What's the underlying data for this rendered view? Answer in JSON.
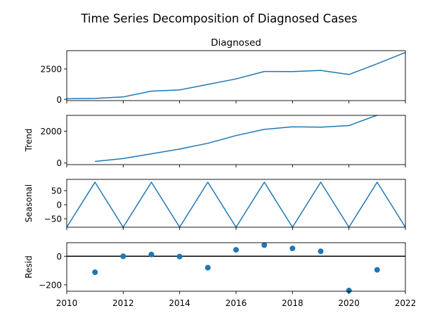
{
  "figure": {
    "suptitle": "Time Series Decomposition of Diagnosed Cases"
  },
  "colors": {
    "line": "#1f77b4",
    "marker": "#1f77b4",
    "axis": "#000000",
    "background": "#ffffff"
  },
  "chart_data": [
    {
      "type": "line",
      "title": "Diagnosed",
      "ylabel": "",
      "xlim": [
        2010,
        2022
      ],
      "ylim": [
        -100,
        4000
      ],
      "yticks": [
        0,
        2500
      ],
      "x": [
        2010,
        2011,
        2012,
        2013,
        2014,
        2015,
        2016,
        2017,
        2018,
        2019,
        2020,
        2021,
        2022
      ],
      "series": [
        {
          "values": [
            50,
            80,
            200,
            680,
            780,
            1230,
            1680,
            2290,
            2280,
            2380,
            2040,
            2920,
            3850
          ]
        }
      ]
    },
    {
      "type": "line",
      "title": "",
      "ylabel": "Trend",
      "xlim": [
        2010,
        2022
      ],
      "ylim": [
        -100,
        3000
      ],
      "yticks": [
        0,
        2000
      ],
      "x": [
        2011,
        2012,
        2013,
        2014,
        2015,
        2016,
        2017,
        2018,
        2019,
        2020,
        2021
      ],
      "series": [
        {
          "values": [
            100,
            280,
            580,
            880,
            1240,
            1730,
            2120,
            2280,
            2260,
            2360,
            3010
          ]
        }
      ]
    },
    {
      "type": "line",
      "title": "",
      "ylabel": "Seasonal",
      "xlim": [
        2010,
        2022
      ],
      "ylim": [
        -80,
        90
      ],
      "yticks": [
        -50,
        0,
        50
      ],
      "x": [
        2010,
        2011,
        2012,
        2013,
        2014,
        2015,
        2016,
        2017,
        2018,
        2019,
        2020,
        2021,
        2022
      ],
      "series": [
        {
          "values": [
            -80,
            80,
            -80,
            80,
            -80,
            80,
            -80,
            80,
            -80,
            80,
            -80,
            80,
            -80
          ]
        }
      ]
    },
    {
      "type": "scatter",
      "title": "",
      "ylabel": "Resid",
      "xlim": [
        2010,
        2022
      ],
      "ylim": [
        -245,
        95
      ],
      "yticks": [
        -200,
        0
      ],
      "zero_line": true,
      "xlabel_ticks": [
        "2010",
        "2012",
        "2014",
        "2016",
        "2018",
        "2020",
        "2022"
      ],
      "x": [
        2011,
        2012,
        2013,
        2014,
        2015,
        2016,
        2017,
        2018,
        2019,
        2020,
        2021
      ],
      "series": [
        {
          "values": [
            -112,
            0,
            12,
            -2,
            -80,
            45,
            78,
            55,
            35,
            -240,
            -95
          ]
        }
      ]
    }
  ]
}
